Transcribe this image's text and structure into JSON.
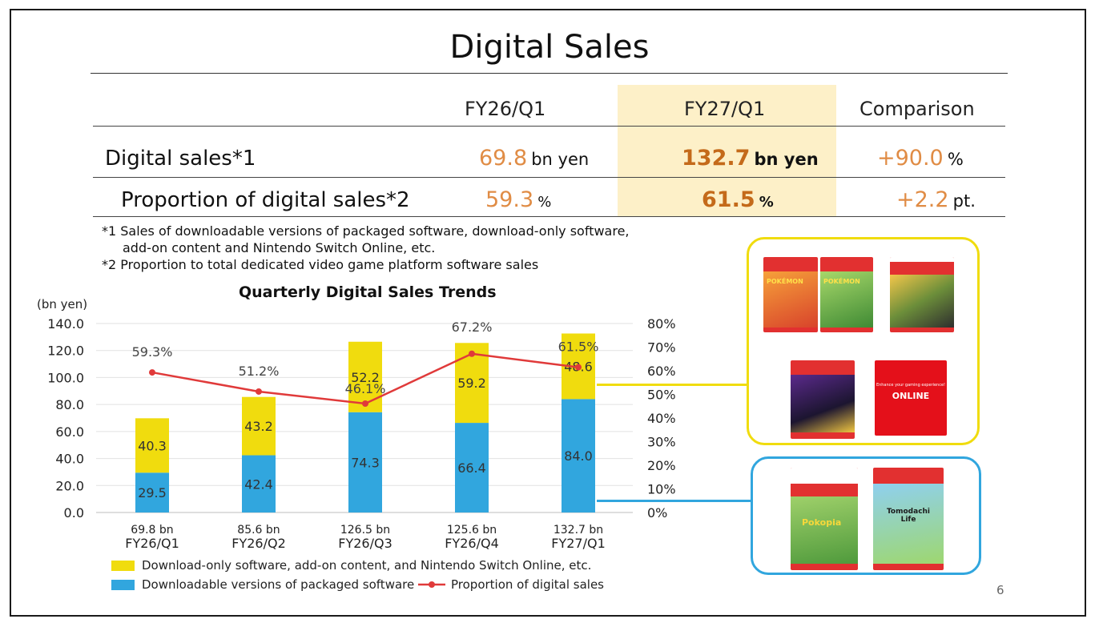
{
  "slide": {
    "title": "Digital Sales",
    "page_number": "6"
  },
  "table": {
    "headers": [
      "FY26/Q1",
      "FY27/Q1",
      "Comparison"
    ],
    "rows": [
      {
        "label": "Digital sales*1",
        "v1": "69.8",
        "u1": "bn yen",
        "v2": "132.7",
        "u2": "bn yen",
        "v3": "+90.0",
        "u3": "%"
      },
      {
        "label": "Proportion of digital sales*2",
        "v1": "59.3",
        "u1": "%",
        "v2": "61.5",
        "u2": "%",
        "v3": "+2.2",
        "u3": "pt."
      }
    ]
  },
  "notes": {
    "n1_line1": "*1 Sales of downloadable versions of packaged software, download-only software,",
    "n1_line2": "add-on content and Nintendo Switch Online, etc.",
    "n2": "*2 Proportion to total dedicated video game platform software sales"
  },
  "colors": {
    "yellow": "#f0dc0e",
    "blue": "#31a6de",
    "line": "#e03a3a",
    "highlight": "#fdf0c8",
    "orange": "#e08c45"
  },
  "chart_data": {
    "type": "bar",
    "title": "Quarterly Digital Sales Trends",
    "ylabel": "(bn yen)",
    "ylim": [
      0,
      140
    ],
    "y_ticks": [
      "0.0",
      "20.0",
      "40.0",
      "60.0",
      "80.0",
      "100.0",
      "120.0",
      "140.0"
    ],
    "y2lim": [
      0,
      80
    ],
    "y2_ticks": [
      "0%",
      "10%",
      "20%",
      "30%",
      "40%",
      "50%",
      "60%",
      "70%",
      "80%"
    ],
    "categories": [
      "FY26/Q1",
      "FY26/Q2",
      "FY26/Q3",
      "FY26/Q4",
      "FY27/Q1"
    ],
    "totals": [
      "69.8 bn",
      "85.6 bn",
      "126.5 bn",
      "125.6 bn",
      "132.7 bn"
    ],
    "series": [
      {
        "name": "Downloadable versions of packaged software",
        "values": [
          29.5,
          42.4,
          74.3,
          66.4,
          84.0
        ],
        "labels": [
          "29.5",
          "42.4",
          "74.3",
          "66.4",
          "84.0"
        ]
      },
      {
        "name": "Download-only software, add-on content, and Nintendo Switch Online, etc.",
        "values": [
          40.3,
          43.2,
          52.2,
          59.2,
          48.6
        ],
        "labels": [
          "40.3",
          "43.2",
          "52.2",
          "59.2",
          "48.6"
        ]
      },
      {
        "name": "Proportion of digital sales",
        "values": [
          59.3,
          51.2,
          46.1,
          67.2,
          61.5
        ],
        "labels": [
          "59.3%",
          "51.2%",
          "46.1%",
          "67.2%",
          "61.5%"
        ]
      }
    ],
    "legend": [
      "Download-only software, add-on content, and Nintendo Switch Online, etc.",
      "Downloadable versions of packaged software",
      "Proportion of digital sales"
    ],
    "legend_placement": "bottom"
  },
  "box_art": {
    "yellow_group": [
      {
        "text": "POKÉMON"
      },
      {
        "text": "POKÉMON"
      },
      {
        "text": ""
      },
      {
        "text": ""
      },
      {
        "text": "ONLINE",
        "subtitle": "Enhance your gaming experience!"
      }
    ],
    "blue_group": [
      {
        "text": "Pokopia"
      },
      {
        "text": "Tomodachi Life"
      }
    ]
  }
}
